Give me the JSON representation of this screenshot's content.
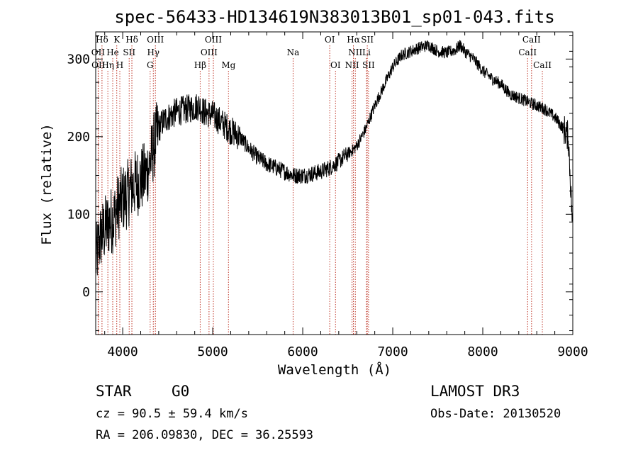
{
  "chart_data": {
    "type": "line",
    "title": "spec-56433-HD134619N383013B01_sp01-043.fits",
    "xlabel": "Wavelength (Å)",
    "ylabel": "Flux (relative)",
    "xlim": [
      3700,
      9000
    ],
    "ylim": [
      -55,
      335
    ],
    "x_ticks": [
      4000,
      5000,
      6000,
      7000,
      8000,
      9000
    ],
    "y_ticks": [
      0,
      100,
      200,
      300
    ],
    "series": [
      {
        "name": "spectrum",
        "x": [
          3700,
          3750,
          3800,
          3850,
          3900,
          3950,
          4000,
          4050,
          4100,
          4150,
          4200,
          4250,
          4300,
          4350,
          4400,
          4450,
          4500,
          4600,
          4700,
          4800,
          4850,
          4900,
          4950,
          5000,
          5100,
          5200,
          5300,
          5400,
          5500,
          5600,
          5700,
          5800,
          5900,
          6000,
          6100,
          6200,
          6300,
          6400,
          6500,
          6560,
          6600,
          6700,
          6800,
          6900,
          7000,
          7100,
          7200,
          7300,
          7400,
          7500,
          7600,
          7700,
          7750,
          7800,
          7900,
          8000,
          8100,
          8200,
          8300,
          8400,
          8500,
          8600,
          8700,
          8800,
          8900,
          8950,
          9000
        ],
        "y": [
          40,
          70,
          80,
          90,
          95,
          110,
          120,
          125,
          135,
          140,
          145,
          150,
          165,
          190,
          210,
          220,
          225,
          232,
          235,
          238,
          240,
          232,
          230,
          228,
          218,
          208,
          200,
          185,
          173,
          165,
          160,
          155,
          150,
          150,
          152,
          155,
          160,
          168,
          178,
          183,
          188,
          210,
          240,
          265,
          290,
          305,
          310,
          315,
          318,
          310,
          308,
          312,
          318,
          310,
          300,
          285,
          275,
          268,
          255,
          250,
          245,
          240,
          235,
          225,
          210,
          200,
          80
        ]
      }
    ],
    "lines": [
      {
        "label": "Hδ",
        "x": 3770,
        "row": 0
      },
      {
        "label": "K",
        "x": 3934,
        "row": 0
      },
      {
        "label": "Hδ",
        "x": 4102,
        "row": 0
      },
      {
        "label": "OIII",
        "x": 4363,
        "row": 0
      },
      {
        "label": "OIII",
        "x": 5007,
        "row": 0
      },
      {
        "label": "OI",
        "x": 6300,
        "row": 0
      },
      {
        "label": "Hα",
        "x": 6563,
        "row": 0
      },
      {
        "label": "SII",
        "x": 6717,
        "row": 0
      },
      {
        "label": "CaII",
        "x": 8542,
        "row": 0
      },
      {
        "label": "OII",
        "x": 3727,
        "row": 1
      },
      {
        "label": "He",
        "x": 3889,
        "row": 1
      },
      {
        "label": "SII",
        "x": 4072,
        "row": 1
      },
      {
        "label": "Hγ",
        "x": 4340,
        "row": 1
      },
      {
        "label": "OIII",
        "x": 4959,
        "row": 1
      },
      {
        "label": "Na",
        "x": 5893,
        "row": 1
      },
      {
        "label": "NII",
        "x": 6584,
        "row": 1
      },
      {
        "label": "Li",
        "x": 6708,
        "row": 1
      },
      {
        "label": "CaII",
        "x": 8498,
        "row": 1
      },
      {
        "label": "OII",
        "x": 3730,
        "row": 2
      },
      {
        "label": "Hη",
        "x": 3835,
        "row": 2
      },
      {
        "label": "H",
        "x": 3968,
        "row": 2
      },
      {
        "label": "G",
        "x": 4305,
        "row": 2
      },
      {
        "label": "Hβ",
        "x": 4861,
        "row": 2
      },
      {
        "label": "Mg",
        "x": 5175,
        "row": 2
      },
      {
        "label": "OI",
        "x": 6364,
        "row": 2
      },
      {
        "label": "NII",
        "x": 6548,
        "row": 2
      },
      {
        "label": "SII",
        "x": 6731,
        "row": 2
      },
      {
        "label": "CaII",
        "x": 8662,
        "row": 2
      }
    ]
  },
  "info": {
    "object_class": "STAR",
    "subclass": "G0",
    "survey": "LAMOST DR3",
    "redshift": "cz = 90.5 ± 59.4 km/s",
    "obs_date": "Obs-Date: 20130520",
    "coords": "RA = 206.09830, DEC =  36.25593"
  },
  "colors": {
    "line_marker": "#c0392b",
    "spectrum": "#000000",
    "axis": "#000000"
  }
}
